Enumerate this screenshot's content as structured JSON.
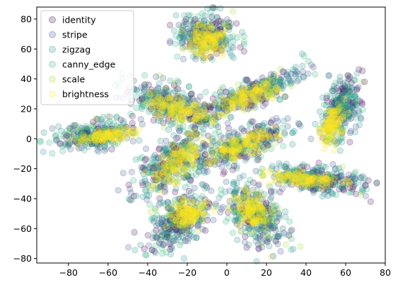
{
  "chart_data": {
    "type": "scatter",
    "title": "",
    "xlabel": "",
    "ylabel": "",
    "xlim": [
      -96,
      80
    ],
    "ylim": [
      -83,
      88
    ],
    "x_ticks": [
      -80,
      -60,
      -40,
      -20,
      0,
      20,
      40,
      60,
      80
    ],
    "y_ticks": [
      -80,
      -60,
      -40,
      -20,
      0,
      20,
      40,
      60,
      80
    ],
    "grid": false,
    "legend_position": "top-left",
    "marker_alpha": 0.2,
    "series": [
      {
        "name": "identity",
        "color": "#440154"
      },
      {
        "name": "stripe",
        "color": "#3b528b"
      },
      {
        "name": "zigzag",
        "color": "#21918c"
      },
      {
        "name": "canny_edge",
        "color": "#2fb47c"
      },
      {
        "name": "scale",
        "color": "#a5db36"
      },
      {
        "name": "brightness",
        "color": "#fde725"
      }
    ],
    "clusters": [
      {
        "cx": -10,
        "cy": 70,
        "rx": 17,
        "ry": 16,
        "angle": 0,
        "n": 300,
        "inner": {
          "cx": -10,
          "cy": 65,
          "rx": 11,
          "ry": 10
        }
      },
      {
        "cx": 12,
        "cy": 30,
        "rx": 33,
        "ry": 10,
        "angle": 32,
        "n": 320,
        "inner": {
          "cx": 10,
          "cy": 28,
          "rx": 22,
          "ry": 7
        }
      },
      {
        "cx": -28,
        "cy": 23,
        "rx": 30,
        "ry": 14,
        "angle": -28,
        "n": 320,
        "inner": {
          "cx": -25,
          "cy": 20,
          "rx": 18,
          "ry": 8
        }
      },
      {
        "cx": 58,
        "cy": 20,
        "rx": 25,
        "ry": 10,
        "angle": 78,
        "n": 280,
        "inner": {
          "cx": 53,
          "cy": 10,
          "rx": 17,
          "ry": 6
        }
      },
      {
        "cx": -68,
        "cy": 2,
        "rx": 24,
        "ry": 10,
        "angle": 12,
        "n": 280,
        "inner": {
          "cx": -60,
          "cy": 2,
          "rx": 15,
          "ry": 5
        }
      },
      {
        "cx": 7,
        "cy": -5,
        "rx": 30,
        "ry": 11,
        "angle": 28,
        "n": 320,
        "inner": {
          "cx": 7,
          "cy": -5,
          "rx": 19,
          "ry": 7
        }
      },
      {
        "cx": -28,
        "cy": -15,
        "rx": 30,
        "ry": 14,
        "angle": 55,
        "n": 320,
        "inner": {
          "cx": -25,
          "cy": -15,
          "rx": 20,
          "ry": 8
        }
      },
      {
        "cx": 45,
        "cy": -27,
        "rx": 28,
        "ry": 10,
        "angle": -8,
        "n": 300,
        "inner": {
          "cx": 40,
          "cy": -27,
          "rx": 20,
          "ry": 5
        }
      },
      {
        "cx": -25,
        "cy": -55,
        "rx": 25,
        "ry": 14,
        "angle": 60,
        "n": 320,
        "inner": {
          "cx": -20,
          "cy": -50,
          "rx": 12,
          "ry": 10
        }
      },
      {
        "cx": 15,
        "cy": -52,
        "rx": 25,
        "ry": 14,
        "angle": -65,
        "n": 320,
        "inner": {
          "cx": 12,
          "cy": -48,
          "rx": 13,
          "ry": 9
        }
      }
    ]
  }
}
